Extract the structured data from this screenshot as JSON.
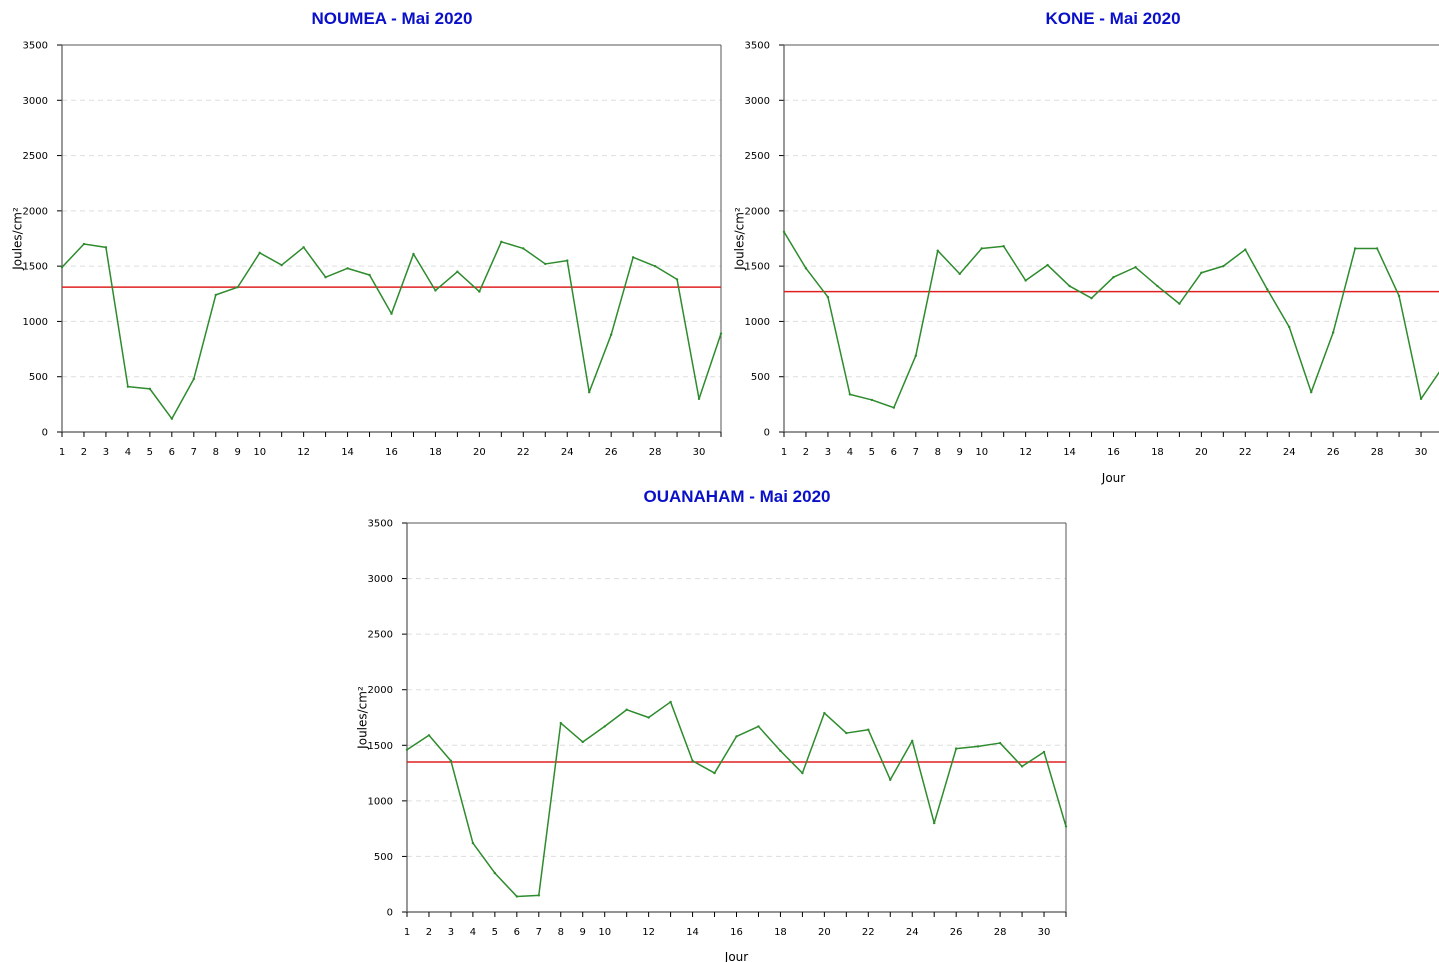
{
  "colors": {
    "title": "#0a10c8",
    "series": "#2e8b2e",
    "mean": "#e02020",
    "grid": "#dddddd",
    "axis": "#000000"
  },
  "chart_data": [
    {
      "type": "line",
      "title": "NOUMEA - Mai 2020",
      "xlabel": "",
      "ylabel": "Joules/cm²",
      "ylim": [
        0,
        3500
      ],
      "yticks": [
        0,
        500,
        1000,
        1500,
        2000,
        2500,
        3000,
        3500
      ],
      "xlim": [
        1,
        31
      ],
      "xtick_labels": [
        "1",
        "2",
        "3",
        "4",
        "5",
        "6",
        "7",
        "8",
        "9",
        "10",
        "12",
        "14",
        "16",
        "18",
        "20",
        "22",
        "24",
        "26",
        "28",
        "30"
      ],
      "grid": "horizontal dashed",
      "x": [
        1,
        2,
        3,
        4,
        5,
        6,
        7,
        8,
        9,
        10,
        11,
        12,
        13,
        14,
        15,
        16,
        17,
        18,
        19,
        20,
        21,
        22,
        23,
        24,
        25,
        26,
        27,
        28,
        29,
        30,
        31
      ],
      "series": [
        {
          "values": [
            1490,
            1700,
            1670,
            410,
            390,
            120,
            480,
            1240,
            1310,
            1620,
            1510,
            1670,
            1400,
            1480,
            1420,
            1070,
            1610,
            1280,
            1450,
            1270,
            1720,
            1660,
            1520,
            1550,
            360,
            880,
            1580,
            1500,
            1380,
            300,
            890
          ]
        }
      ],
      "hline": 1310
    },
    {
      "type": "line",
      "title": "KONE - Mai 2020",
      "xlabel": "Jour",
      "ylabel": "Joules/cm²",
      "ylim": [
        0,
        3500
      ],
      "yticks": [
        0,
        500,
        1000,
        1500,
        2000,
        2500,
        3000,
        3500
      ],
      "xlim": [
        1,
        31
      ],
      "xtick_labels": [
        "1",
        "2",
        "3",
        "4",
        "5",
        "6",
        "7",
        "8",
        "9",
        "10",
        "12",
        "14",
        "16",
        "18",
        "20",
        "22",
        "24",
        "26",
        "28",
        "30"
      ],
      "grid": "horizontal dashed",
      "x": [
        1,
        2,
        3,
        4,
        5,
        6,
        7,
        8,
        9,
        10,
        11,
        12,
        13,
        14,
        15,
        16,
        17,
        18,
        19,
        20,
        21,
        22,
        23,
        24,
        25,
        26,
        27,
        28,
        29,
        30,
        31
      ],
      "series": [
        {
          "values": [
            1810,
            1480,
            1220,
            340,
            290,
            220,
            690,
            1640,
            1430,
            1660,
            1680,
            1370,
            1510,
            1320,
            1210,
            1400,
            1490,
            1320,
            1160,
            1440,
            1500,
            1650,
            1290,
            950,
            360,
            900,
            1660,
            1660,
            1230,
            300,
            590
          ]
        }
      ],
      "hline": 1270
    },
    {
      "type": "line",
      "title": "OUANAHAM - Mai 2020",
      "xlabel": "Jour",
      "ylabel": "Joules/cm²",
      "ylim": [
        0,
        3500
      ],
      "yticks": [
        0,
        500,
        1000,
        1500,
        2000,
        2500,
        3000,
        3500
      ],
      "xlim": [
        1,
        31
      ],
      "xtick_labels": [
        "1",
        "2",
        "3",
        "4",
        "5",
        "6",
        "7",
        "8",
        "9",
        "10",
        "12",
        "14",
        "16",
        "18",
        "20",
        "22",
        "24",
        "26",
        "28",
        "30"
      ],
      "grid": "horizontal dashed",
      "x": [
        1,
        2,
        3,
        4,
        5,
        6,
        7,
        8,
        9,
        10,
        11,
        12,
        13,
        14,
        15,
        16,
        17,
        18,
        19,
        20,
        21,
        22,
        23,
        24,
        25,
        26,
        27,
        28,
        29,
        30,
        31
      ],
      "series": [
        {
          "values": [
            1460,
            1590,
            1360,
            620,
            350,
            140,
            150,
            1700,
            1530,
            1670,
            1820,
            1750,
            1890,
            1360,
            1250,
            1580,
            1670,
            1450,
            1250,
            1790,
            1610,
            1640,
            1190,
            1540,
            800,
            1470,
            1490,
            1520,
            1310,
            1440,
            770
          ]
        }
      ],
      "hline": 1350
    }
  ]
}
